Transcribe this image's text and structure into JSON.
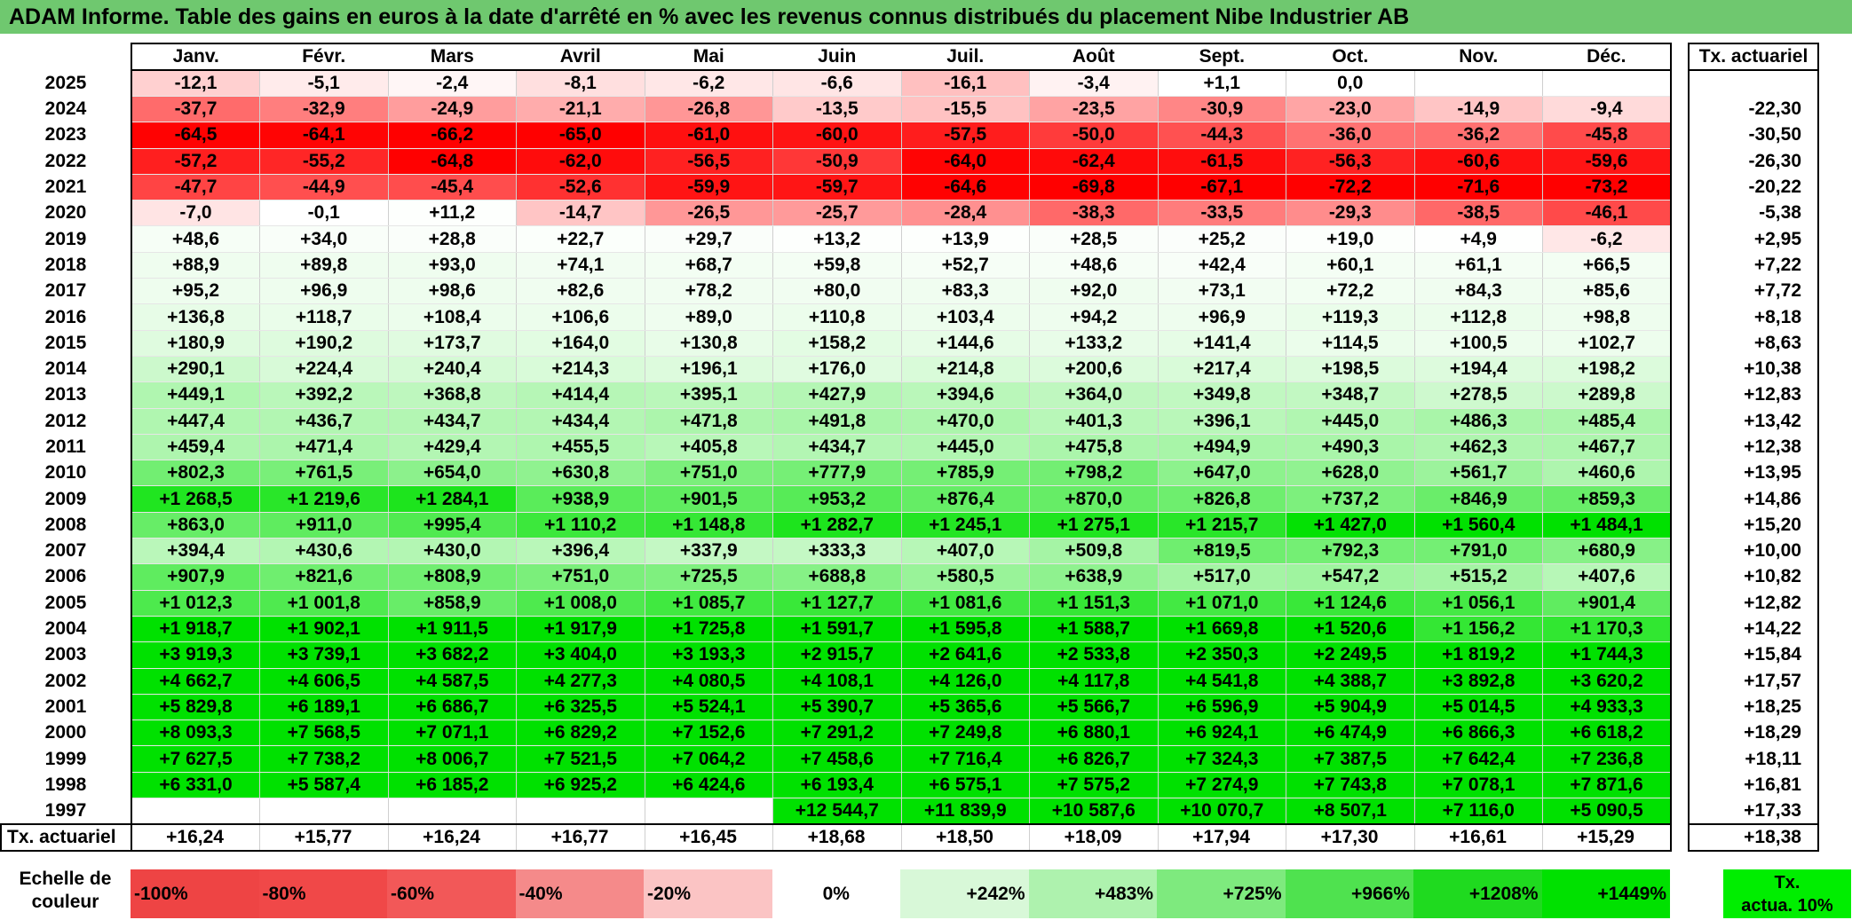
{
  "title": "ADAM Informe. Table des gains en euros à la date d'arrêté en % avec les revenus connus distribués du placement Nibe Industrier AB",
  "chart_data": {
    "type": "heatmap",
    "columns": [
      "Janv.",
      "Févr.",
      "Mars",
      "Avril",
      "Mai",
      "Juin",
      "Juil.",
      "Août",
      "Sept.",
      "Oct.",
      "Nov.",
      "Déc."
    ],
    "annual_header": "Tx. actuariel",
    "rows": [
      {
        "year": "2025",
        "cells": [
          "-12,1",
          "-5,1",
          "-2,4",
          "-8,1",
          "-6,2",
          "-6,6",
          "-16,1",
          "-3,4",
          "+1,1",
          "0,0",
          "",
          ""
        ],
        "annual": ""
      },
      {
        "year": "2024",
        "cells": [
          "-37,7",
          "-32,9",
          "-24,9",
          "-21,1",
          "-26,8",
          "-13,5",
          "-15,5",
          "-23,5",
          "-30,9",
          "-23,0",
          "-14,9",
          "-9,4"
        ],
        "annual": "-22,30"
      },
      {
        "year": "2023",
        "cells": [
          "-64,5",
          "-64,1",
          "-66,2",
          "-65,0",
          "-61,0",
          "-60,0",
          "-57,5",
          "-50,0",
          "-44,3",
          "-36,0",
          "-36,2",
          "-45,8"
        ],
        "annual": "-30,50"
      },
      {
        "year": "2022",
        "cells": [
          "-57,2",
          "-55,2",
          "-64,8",
          "-62,0",
          "-56,5",
          "-50,9",
          "-64,0",
          "-62,4",
          "-61,5",
          "-56,3",
          "-60,6",
          "-59,6"
        ],
        "annual": "-26,30"
      },
      {
        "year": "2021",
        "cells": [
          "-47,7",
          "-44,9",
          "-45,4",
          "-52,6",
          "-59,9",
          "-59,7",
          "-64,6",
          "-69,8",
          "-67,1",
          "-72,2",
          "-71,6",
          "-73,2"
        ],
        "annual": "-20,22"
      },
      {
        "year": "2020",
        "cells": [
          "-7,0",
          "-0,1",
          "+11,2",
          "-14,7",
          "-26,5",
          "-25,7",
          "-28,4",
          "-38,3",
          "-33,5",
          "-29,3",
          "-38,5",
          "-46,1"
        ],
        "annual": "-5,38"
      },
      {
        "year": "2019",
        "cells": [
          "+48,6",
          "+34,0",
          "+28,8",
          "+22,7",
          "+29,7",
          "+13,2",
          "+13,9",
          "+28,5",
          "+25,2",
          "+19,0",
          "+4,9",
          "-6,2"
        ],
        "annual": "+2,95"
      },
      {
        "year": "2018",
        "cells": [
          "+88,9",
          "+89,8",
          "+93,0",
          "+74,1",
          "+68,7",
          "+59,8",
          "+52,7",
          "+48,6",
          "+42,4",
          "+60,1",
          "+61,1",
          "+66,5"
        ],
        "annual": "+7,22"
      },
      {
        "year": "2017",
        "cells": [
          "+95,2",
          "+96,9",
          "+98,6",
          "+82,6",
          "+78,2",
          "+80,0",
          "+83,3",
          "+92,0",
          "+73,1",
          "+72,2",
          "+84,3",
          "+85,6"
        ],
        "annual": "+7,72"
      },
      {
        "year": "2016",
        "cells": [
          "+136,8",
          "+118,7",
          "+108,4",
          "+106,6",
          "+89,0",
          "+110,8",
          "+103,4",
          "+94,2",
          "+96,9",
          "+119,3",
          "+112,8",
          "+98,8"
        ],
        "annual": "+8,18"
      },
      {
        "year": "2015",
        "cells": [
          "+180,9",
          "+190,2",
          "+173,7",
          "+164,0",
          "+130,8",
          "+158,2",
          "+144,6",
          "+133,2",
          "+141,4",
          "+114,5",
          "+100,5",
          "+102,7"
        ],
        "annual": "+8,63"
      },
      {
        "year": "2014",
        "cells": [
          "+290,1",
          "+224,4",
          "+240,4",
          "+214,3",
          "+196,1",
          "+176,0",
          "+214,8",
          "+200,6",
          "+217,4",
          "+198,5",
          "+194,4",
          "+198,2"
        ],
        "annual": "+10,38"
      },
      {
        "year": "2013",
        "cells": [
          "+449,1",
          "+392,2",
          "+368,8",
          "+414,4",
          "+395,1",
          "+427,9",
          "+394,6",
          "+364,0",
          "+349,8",
          "+348,7",
          "+278,5",
          "+289,8"
        ],
        "annual": "+12,83"
      },
      {
        "year": "2012",
        "cells": [
          "+447,4",
          "+436,7",
          "+434,7",
          "+434,4",
          "+471,8",
          "+491,8",
          "+470,0",
          "+401,3",
          "+396,1",
          "+445,0",
          "+486,3",
          "+485,4"
        ],
        "annual": "+13,42"
      },
      {
        "year": "2011",
        "cells": [
          "+459,4",
          "+471,4",
          "+429,4",
          "+455,5",
          "+405,8",
          "+434,7",
          "+445,0",
          "+475,8",
          "+494,9",
          "+490,3",
          "+462,3",
          "+467,7"
        ],
        "annual": "+12,38"
      },
      {
        "year": "2010",
        "cells": [
          "+802,3",
          "+761,5",
          "+654,0",
          "+630,8",
          "+751,0",
          "+777,9",
          "+785,9",
          "+798,2",
          "+647,0",
          "+628,0",
          "+561,7",
          "+460,6"
        ],
        "annual": "+13,95"
      },
      {
        "year": "2009",
        "cells": [
          "+1 268,5",
          "+1 219,6",
          "+1 284,1",
          "+938,9",
          "+901,5",
          "+953,2",
          "+876,4",
          "+870,0",
          "+826,8",
          "+737,2",
          "+846,9",
          "+859,3"
        ],
        "annual": "+14,86"
      },
      {
        "year": "2008",
        "cells": [
          "+863,0",
          "+911,0",
          "+995,4",
          "+1 110,2",
          "+1 148,8",
          "+1 282,7",
          "+1 245,1",
          "+1 275,1",
          "+1 215,7",
          "+1 427,0",
          "+1 560,4",
          "+1 484,1"
        ],
        "annual": "+15,20"
      },
      {
        "year": "2007",
        "cells": [
          "+394,4",
          "+430,6",
          "+430,0",
          "+396,4",
          "+337,9",
          "+333,3",
          "+407,0",
          "+509,8",
          "+819,5",
          "+792,3",
          "+791,0",
          "+680,9"
        ],
        "annual": "+10,00"
      },
      {
        "year": "2006",
        "cells": [
          "+907,9",
          "+821,6",
          "+808,9",
          "+751,0",
          "+725,5",
          "+688,8",
          "+580,5",
          "+638,9",
          "+517,0",
          "+547,2",
          "+515,2",
          "+407,6"
        ],
        "annual": "+10,82"
      },
      {
        "year": "2005",
        "cells": [
          "+1 012,3",
          "+1 001,8",
          "+858,9",
          "+1 008,0",
          "+1 085,7",
          "+1 127,7",
          "+1 081,6",
          "+1 151,3",
          "+1 071,0",
          "+1 124,6",
          "+1 056,1",
          "+901,4"
        ],
        "annual": "+12,82"
      },
      {
        "year": "2004",
        "cells": [
          "+1 918,7",
          "+1 902,1",
          "+1 911,5",
          "+1 917,9",
          "+1 725,8",
          "+1 591,7",
          "+1 595,8",
          "+1 588,7",
          "+1 669,8",
          "+1 520,6",
          "+1 156,2",
          "+1 170,3"
        ],
        "annual": "+14,22"
      },
      {
        "year": "2003",
        "cells": [
          "+3 919,3",
          "+3 739,1",
          "+3 682,2",
          "+3 404,0",
          "+3 193,3",
          "+2 915,7",
          "+2 641,6",
          "+2 533,8",
          "+2 350,3",
          "+2 249,5",
          "+1 819,2",
          "+1 744,3"
        ],
        "annual": "+15,84"
      },
      {
        "year": "2002",
        "cells": [
          "+4 662,7",
          "+4 606,5",
          "+4 587,5",
          "+4 277,3",
          "+4 080,5",
          "+4 108,1",
          "+4 126,0",
          "+4 117,8",
          "+4 541,8",
          "+4 388,7",
          "+3 892,8",
          "+3 620,2"
        ],
        "annual": "+17,57"
      },
      {
        "year": "2001",
        "cells": [
          "+5 829,8",
          "+6 189,1",
          "+6 686,7",
          "+6 325,5",
          "+5 524,1",
          "+5 390,7",
          "+5 365,6",
          "+5 566,7",
          "+6 596,9",
          "+5 904,9",
          "+5 014,5",
          "+4 933,3"
        ],
        "annual": "+18,25"
      },
      {
        "year": "2000",
        "cells": [
          "+8 093,3",
          "+7 568,5",
          "+7 071,1",
          "+6 829,2",
          "+7 152,6",
          "+7 291,2",
          "+7 249,8",
          "+6 880,1",
          "+6 924,1",
          "+6 474,9",
          "+6 866,3",
          "+6 618,2"
        ],
        "annual": "+18,29"
      },
      {
        "year": "1999",
        "cells": [
          "+7 627,5",
          "+7 738,2",
          "+8 006,7",
          "+7 521,5",
          "+7 064,2",
          "+7 458,6",
          "+7 716,4",
          "+6 826,7",
          "+7 324,3",
          "+7 387,5",
          "+7 642,4",
          "+7 236,8"
        ],
        "annual": "+18,11"
      },
      {
        "year": "1998",
        "cells": [
          "+6 331,0",
          "+5 587,4",
          "+6 185,2",
          "+6 925,2",
          "+6 424,6",
          "+6 193,4",
          "+6 575,1",
          "+7 575,2",
          "+7 274,9",
          "+7 743,8",
          "+7 078,1",
          "+7 871,6"
        ],
        "annual": "+16,81"
      },
      {
        "year": "1997",
        "cells": [
          "",
          "",
          "",
          "",
          "",
          "+12 544,7",
          "+11 839,9",
          "+10 587,6",
          "+10 070,7",
          "+8 507,1",
          "+7 116,0",
          "+5 090,5"
        ],
        "annual": "+17,33"
      }
    ],
    "summary": {
      "label": "Tx. actuariel",
      "cells": [
        "+16,24",
        "+15,77",
        "+16,24",
        "+16,77",
        "+16,45",
        "+18,68",
        "+18,50",
        "+18,09",
        "+17,94",
        "+17,30",
        "+16,61",
        "+15,29"
      ],
      "annual": "+18,38"
    },
    "scale": {
      "label_line1": "Echelle de",
      "label_line2": "couleur",
      "stops": [
        {
          "label": "-100%",
          "value": -100,
          "color": "#ee4444",
          "align": "left"
        },
        {
          "label": "-80%",
          "value": -80,
          "color": "#f04848",
          "align": "left"
        },
        {
          "label": "-60%",
          "value": -60,
          "color": "#f25858",
          "align": "left"
        },
        {
          "label": "-40%",
          "value": -40,
          "color": "#f58a8a",
          "align": "left"
        },
        {
          "label": "-20%",
          "value": -20,
          "color": "#fbc4c4",
          "align": "left"
        },
        {
          "label": "0%",
          "value": 0,
          "color": "#ffffff",
          "align": "center"
        },
        {
          "label": "+242%",
          "value": 242,
          "color": "#d8f8d8",
          "align": "right"
        },
        {
          "label": "+483%",
          "value": 483,
          "color": "#aef2ae",
          "align": "right"
        },
        {
          "label": "+725%",
          "value": 725,
          "color": "#7eea7e",
          "align": "right"
        },
        {
          "label": "+966%",
          "value": 966,
          "color": "#4fe24f",
          "align": "right"
        },
        {
          "label": "+1208%",
          "value": 1208,
          "color": "#1fda1f",
          "align": "right"
        },
        {
          "label": "+1449%",
          "value": 1449,
          "color": "#00e100",
          "align": "right"
        }
      ],
      "tx_line1": "Tx.",
      "tx_line2": "actua. 10%"
    },
    "colors": {
      "title_bar": "#6fc86f",
      "neg_min": "#ff0000",
      "pos_max": "#00e100"
    }
  }
}
